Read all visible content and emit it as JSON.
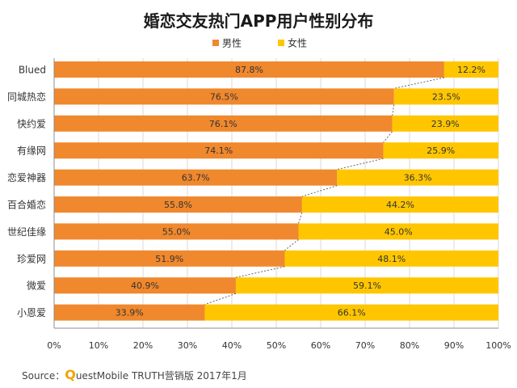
{
  "chart_data": {
    "type": "bar",
    "orientation": "horizontal",
    "stacked": true,
    "title": "婚恋交友热门APP用户性别分布",
    "categories": [
      "Blued",
      "同城热恋",
      "快约爱",
      "有缘网",
      "恋爱神器",
      "百合婚恋",
      "世纪佳缘",
      "珍爱网",
      "微爱",
      "小恩爱"
    ],
    "series": [
      {
        "name": "男性",
        "color": "#f0882d",
        "values": [
          87.8,
          76.5,
          76.1,
          74.1,
          63.7,
          55.8,
          55.0,
          51.9,
          40.9,
          33.9
        ]
      },
      {
        "name": "女性",
        "color": "#ffc600",
        "values": [
          12.2,
          23.5,
          23.9,
          25.9,
          36.3,
          44.2,
          45.0,
          48.1,
          59.1,
          66.1
        ]
      }
    ],
    "value_suffix": "%",
    "xlim": [
      0,
      100
    ],
    "xticks": [
      "0%",
      "10%",
      "20%",
      "30%",
      "40%",
      "50%",
      "60%",
      "70%",
      "80%",
      "90%",
      "100%"
    ],
    "grid": "vertical",
    "legend_position": "top-center",
    "connector_lines": "dashed"
  },
  "source": {
    "prefix": "Source：",
    "q_letter": "Q",
    "rest": "uestMobile TRUTH营销版 2017年1月"
  }
}
